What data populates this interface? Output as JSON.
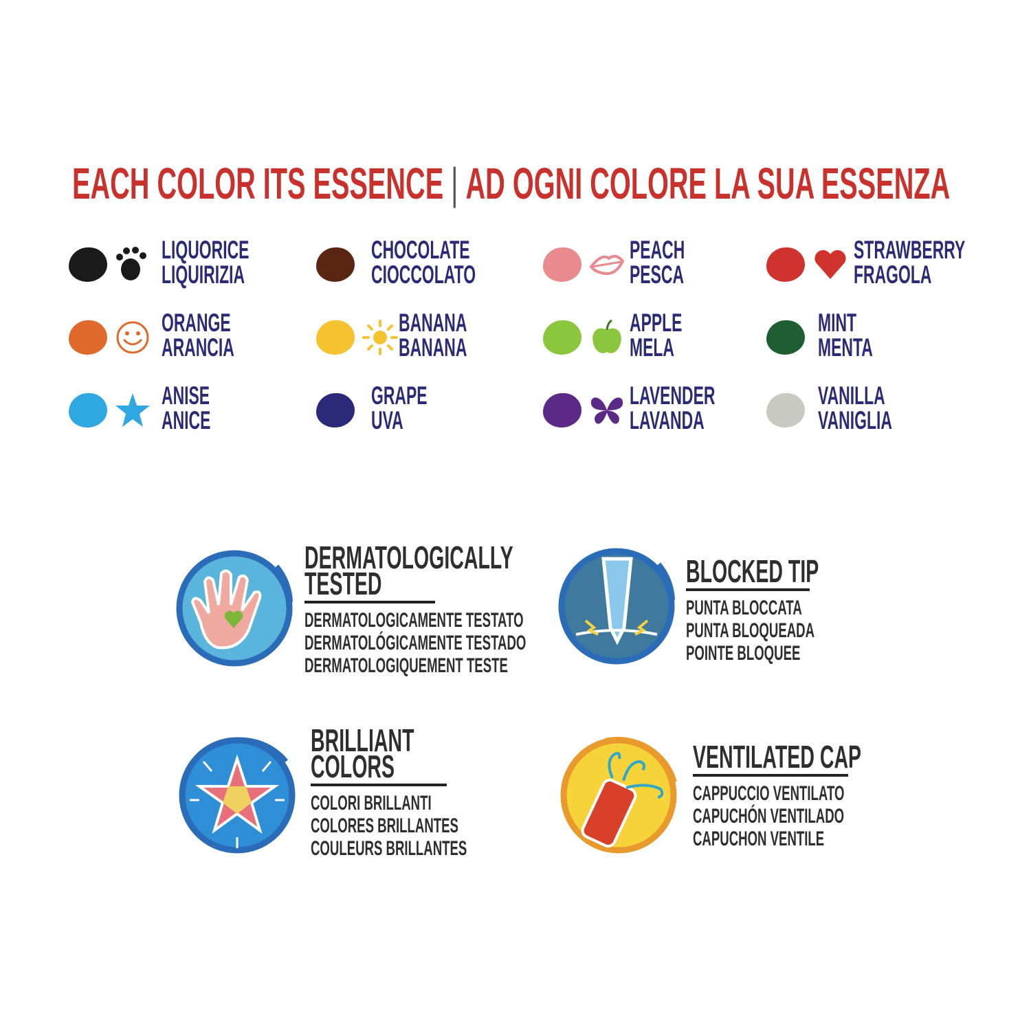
{
  "header": {
    "title_en": "EACH COLOR ITS ESSENCE",
    "separator": "|",
    "title_it": "AD OGNI COLORE LA SUA ESSENZA"
  },
  "flavors": [
    {
      "en": "LIQUORICE",
      "it": "LIQUIRIZIA",
      "color": "#1a1a1a",
      "icon": "paw-icon"
    },
    {
      "en": "CHOCOLATE",
      "it": "CIOCCOLATO",
      "color": "#5a2613",
      "icon": ""
    },
    {
      "en": "PEACH",
      "it": "PESCA",
      "color": "#e88a8e",
      "icon": "lips-icon"
    },
    {
      "en": "STRAWBERRY",
      "it": "FRAGOLA",
      "color": "#d0332e",
      "icon": "heart-icon"
    },
    {
      "en": "ORANGE",
      "it": "ARANCIA",
      "color": "#e06a2c",
      "icon": "smiley-icon"
    },
    {
      "en": "BANANA",
      "it": "BANANA",
      "color": "#f5c330",
      "icon": "sun-icon"
    },
    {
      "en": "APPLE",
      "it": "MELA",
      "color": "#8cc63f",
      "icon": "apple-icon"
    },
    {
      "en": "MINT",
      "it": "MENTA",
      "color": "#1f5e32",
      "icon": ""
    },
    {
      "en": "ANISE",
      "it": "ANICE",
      "color": "#2fa7e0",
      "icon": "star-icon"
    },
    {
      "en": "GRAPE",
      "it": "UVA",
      "color": "#2b2a7a",
      "icon": ""
    },
    {
      "en": "LAVENDER",
      "it": "LAVANDA",
      "color": "#5b2a86",
      "icon": "butterfly-icon"
    },
    {
      "en": "VANILLA",
      "it": "VANIGLIA",
      "color": "#c9c9c4",
      "icon": ""
    }
  ],
  "features": [
    {
      "title1": "DERMATOLOGICALLY",
      "title2": "TESTED",
      "l1": "DERMATOLOGICAMENTE TESTATO",
      "l2": "DERMATOLÓGICAMENTE TESTADO",
      "l3": "DERMATOLOGIQUEMENT TESTE",
      "icon": "hand-heart-icon"
    },
    {
      "title1": "BLOCKED TIP",
      "title2": "",
      "l1": "PUNTA BLOCCATA",
      "l2": "PUNTA BLOQUEADA",
      "l3": "POINTE BLOQUEE",
      "icon": "marker-tip-icon"
    },
    {
      "title1": "BRILLIANT",
      "title2": "COLORS",
      "l1": "COLORI BRILLANTI",
      "l2": "COLORES BRILLANTES",
      "l3": "COULEURS BRILLANTES",
      "icon": "star-burst-icon"
    },
    {
      "title1": "VENTILATED CAP",
      "title2": "",
      "l1": "CAPPUCCIO VENTILATO",
      "l2": "CAPUCHÓN VENTILADO",
      "l3": "CAPUCHON VENTILE",
      "icon": "vented-cap-icon"
    }
  ]
}
